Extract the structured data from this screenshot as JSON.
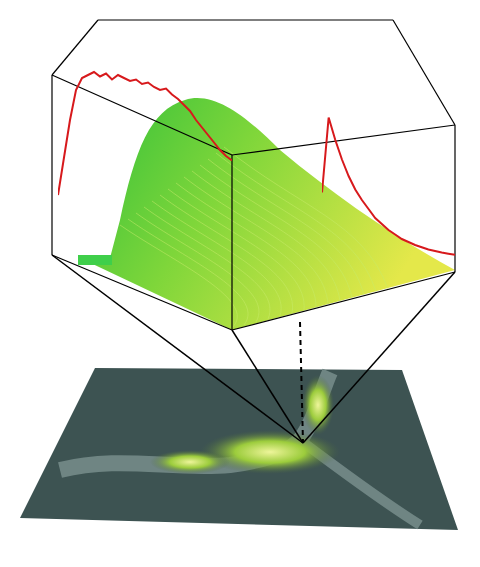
{
  "chart_data": [
    {
      "type": "line",
      "color": "#d7191c",
      "ylim": [
        0,
        1
      ],
      "tick_labels": false,
      "values": [
        0.1,
        0.35,
        0.6,
        0.8,
        0.88,
        0.9,
        0.92,
        0.89,
        0.91,
        0.87,
        0.9,
        0.88,
        0.86,
        0.87,
        0.84,
        0.85,
        0.82,
        0.8,
        0.81,
        0.77,
        0.74,
        0.7,
        0.66,
        0.6,
        0.55,
        0.5,
        0.45,
        0.4,
        0.36,
        0.33
      ]
    },
    {
      "type": "line",
      "color": "#d7191c",
      "ylim": [
        0,
        1
      ],
      "tick_labels": false,
      "values": [
        0.45,
        0.95,
        0.8,
        0.67,
        0.56,
        0.47,
        0.4,
        0.34,
        0.28,
        0.24,
        0.2,
        0.17,
        0.14,
        0.12,
        0.1,
        0.085,
        0.07,
        0.06,
        0.05,
        0.042,
        0.035
      ]
    }
  ]
}
